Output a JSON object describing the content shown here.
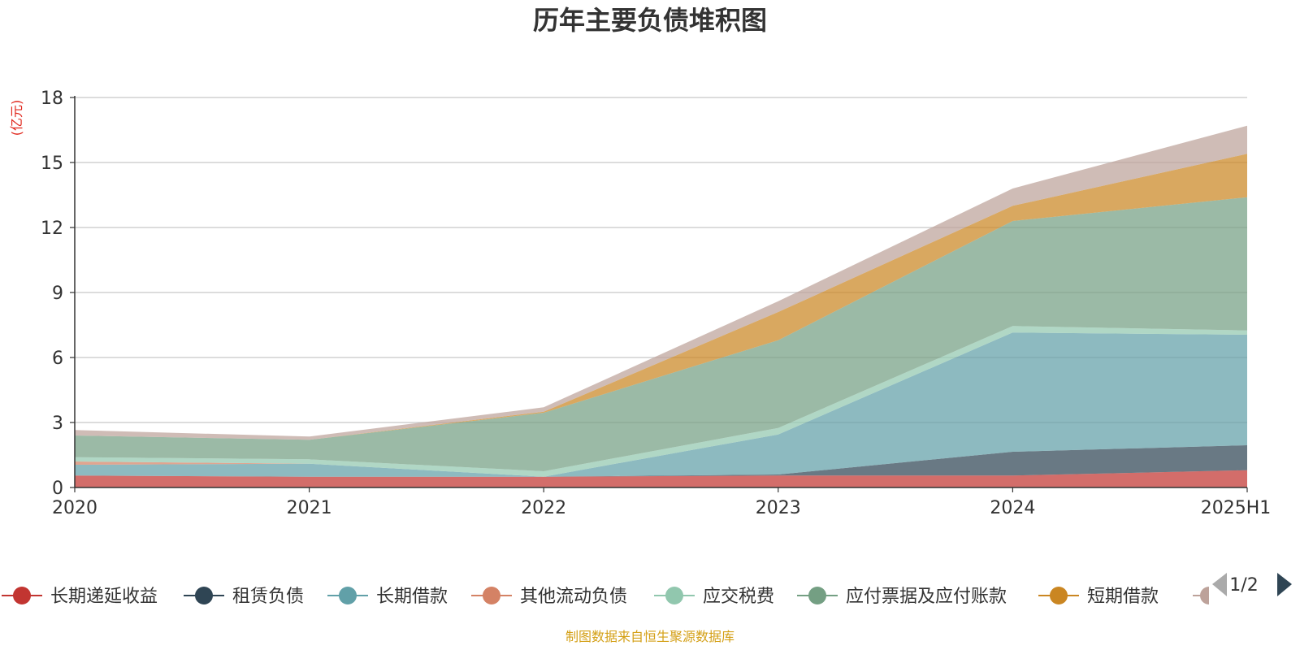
{
  "chart_data": {
    "type": "area",
    "stacked": true,
    "title": "历年主要负债堆积图",
    "ylabel": "(亿元)",
    "x": [
      "2020",
      "2021",
      "2022",
      "2023",
      "2024",
      "2025H1"
    ],
    "yticks": [
      "0",
      "3",
      "6",
      "9",
      "12",
      "15",
      "18"
    ],
    "ylim": [
      0,
      18
    ],
    "grid": true,
    "legend_position": "bottom",
    "legend_page": "1/2",
    "series": [
      {
        "name": "长期递延收益",
        "color": "#c23531",
        "values": [
          0.55,
          0.5,
          0.5,
          0.55,
          0.55,
          0.8
        ]
      },
      {
        "name": "租赁负债",
        "color": "#2f4554",
        "values": [
          0.0,
          0.0,
          0.0,
          0.05,
          1.1,
          1.15
        ]
      },
      {
        "name": "长期借款",
        "color": "#61a0a8",
        "values": [
          0.5,
          0.6,
          0.0,
          1.85,
          5.5,
          5.1
        ]
      },
      {
        "name": "其他流动负债",
        "color": "#d48265",
        "values": [
          0.15,
          0.0,
          0.0,
          0.0,
          0.0,
          0.0
        ]
      },
      {
        "name": "应交税费",
        "color": "#91c7ae",
        "values": [
          0.2,
          0.2,
          0.25,
          0.3,
          0.3,
          0.2
        ]
      },
      {
        "name": "应付票据及应付账款",
        "color": "#749f83",
        "values": [
          1.0,
          0.9,
          2.7,
          4.05,
          4.85,
          6.15
        ]
      },
      {
        "name": "短期借款",
        "color": "#ca8622",
        "values": [
          0.0,
          0.0,
          0.05,
          1.3,
          0.7,
          2.0
        ]
      },
      {
        "name": "",
        "color": "#bda29a",
        "values": [
          0.25,
          0.15,
          0.2,
          0.5,
          0.8,
          1.3
        ]
      }
    ],
    "source_note": "制图数据来自恒生聚源数据库",
    "colors": {
      "ylabel": "#e0261b",
      "source_note": "#d4a017",
      "nav_active": "#2f4554",
      "nav_inactive": "#aaaaaa"
    }
  }
}
